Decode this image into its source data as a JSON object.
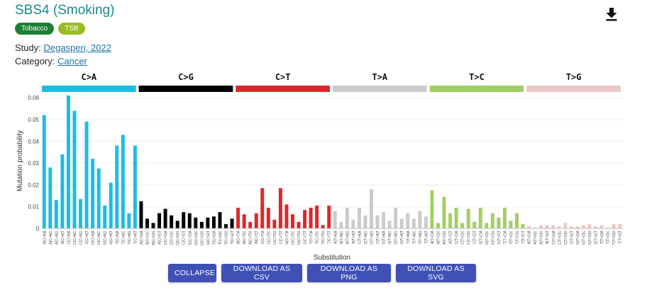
{
  "page": {
    "title": "SBS4 (Smoking)",
    "tags": [
      "Tobacco",
      "TSB"
    ],
    "study_label": "Study: ",
    "study_link": "Degasperi, 2022",
    "category_label": "Category: ",
    "category_link": "Cancer",
    "download_icon": "download-icon"
  },
  "buttons": {
    "collapse": "COLLAPSE",
    "csv": "DOWNLOAD AS CSV",
    "png": "DOWNLOAD AS PNG",
    "svg": "DOWNLOAD AS SVG"
  },
  "chart_data": {
    "type": "bar",
    "xlabel": "Substitution",
    "ylabel": "Mutation probability",
    "ylim": [
      0,
      0.062
    ],
    "yticks": [
      0,
      0.01,
      0.02,
      0.03,
      0.04,
      0.05,
      0.06
    ],
    "grid": true,
    "groups": [
      {
        "name": "C>A",
        "color": "#1ebbe3"
      },
      {
        "name": "C>G",
        "color": "#000000"
      },
      {
        "name": "C>T",
        "color": "#e0262a"
      },
      {
        "name": "T>A",
        "color": "#cbcbcb"
      },
      {
        "name": "T>C",
        "color": "#a2cf63"
      },
      {
        "name": "T>G",
        "color": "#ecc7c5"
      }
    ],
    "categories": [
      "A[C>A]A",
      "A[C>A]C",
      "A[C>A]G",
      "A[C>A]T",
      "C[C>A]A",
      "C[C>A]C",
      "C[C>A]G",
      "C[C>A]T",
      "G[C>A]A",
      "G[C>A]C",
      "G[C>A]G",
      "G[C>A]T",
      "T[C>A]A",
      "T[C>A]C",
      "T[C>A]G",
      "T[C>A]T",
      "A[C>G]A",
      "A[C>G]C",
      "A[C>G]G",
      "A[C>G]T",
      "C[C>G]A",
      "C[C>G]C",
      "C[C>G]G",
      "C[C>G]T",
      "G[C>G]A",
      "G[C>G]C",
      "G[C>G]G",
      "G[C>G]T",
      "T[C>G]A",
      "T[C>G]C",
      "T[C>G]G",
      "T[C>G]T",
      "A[C>T]A",
      "A[C>T]C",
      "A[C>T]G",
      "A[C>T]T",
      "C[C>T]A",
      "C[C>T]C",
      "C[C>T]G",
      "C[C>T]T",
      "G[C>T]A",
      "G[C>T]C",
      "G[C>T]G",
      "G[C>T]T",
      "T[C>T]A",
      "T[C>T]C",
      "T[C>T]G",
      "T[C>T]T",
      "A[T>A]A",
      "A[T>A]C",
      "A[T>A]G",
      "A[T>A]T",
      "C[T>A]A",
      "C[T>A]C",
      "C[T>A]G",
      "C[T>A]T",
      "G[T>A]A",
      "G[T>A]C",
      "G[T>A]G",
      "G[T>A]T",
      "T[T>A]A",
      "T[T>A]C",
      "T[T>A]G",
      "T[T>A]T",
      "A[T>C]A",
      "A[T>C]C",
      "A[T>C]G",
      "A[T>C]T",
      "C[T>C]A",
      "C[T>C]C",
      "C[T>C]G",
      "C[T>C]T",
      "G[T>C]A",
      "G[T>C]C",
      "G[T>C]G",
      "G[T>C]T",
      "T[T>C]A",
      "T[T>C]C",
      "T[T>C]G",
      "T[T>C]T",
      "A[T>G]A",
      "A[T>G]C",
      "A[T>G]G",
      "A[T>G]T",
      "C[T>G]A",
      "C[T>G]C",
      "C[T>G]G",
      "C[T>G]T",
      "G[T>G]A",
      "G[T>G]C",
      "G[T>G]G",
      "G[T>G]T",
      "T[T>G]A",
      "T[T>G]C",
      "T[T>G]G",
      "T[T>G]T"
    ],
    "values": [
      0.052,
      0.028,
      0.013,
      0.034,
      0.061,
      0.054,
      0.0135,
      0.049,
      0.032,
      0.0275,
      0.0105,
      0.021,
      0.038,
      0.043,
      0.007,
      0.038,
      0.0125,
      0.0045,
      0.0025,
      0.007,
      0.009,
      0.006,
      0.0035,
      0.0075,
      0.007,
      0.005,
      0.003,
      0.005,
      0.0055,
      0.0075,
      0.002,
      0.0045,
      0.0095,
      0.0065,
      0.003,
      0.007,
      0.0185,
      0.0095,
      0.004,
      0.0185,
      0.011,
      0.0065,
      0.003,
      0.0085,
      0.0095,
      0.0105,
      0.0015,
      0.0105,
      0.008,
      0.003,
      0.0095,
      0.004,
      0.0095,
      0.006,
      0.018,
      0.006,
      0.0075,
      0.0035,
      0.0095,
      0.0045,
      0.007,
      0.0045,
      0.008,
      0.0055,
      0.0175,
      0.0025,
      0.0145,
      0.007,
      0.0095,
      0.0025,
      0.009,
      0.003,
      0.0095,
      0.0025,
      0.007,
      0.005,
      0.0095,
      0.0035,
      0.007,
      0.002,
      0.001,
      0.0005,
      0.0015,
      0.0015,
      0.0015,
      0.001,
      0.0025,
      0.001,
      0.001,
      0.0015,
      0.002,
      0.001,
      0.0015,
      0.0005,
      0.002,
      0.002
    ]
  }
}
